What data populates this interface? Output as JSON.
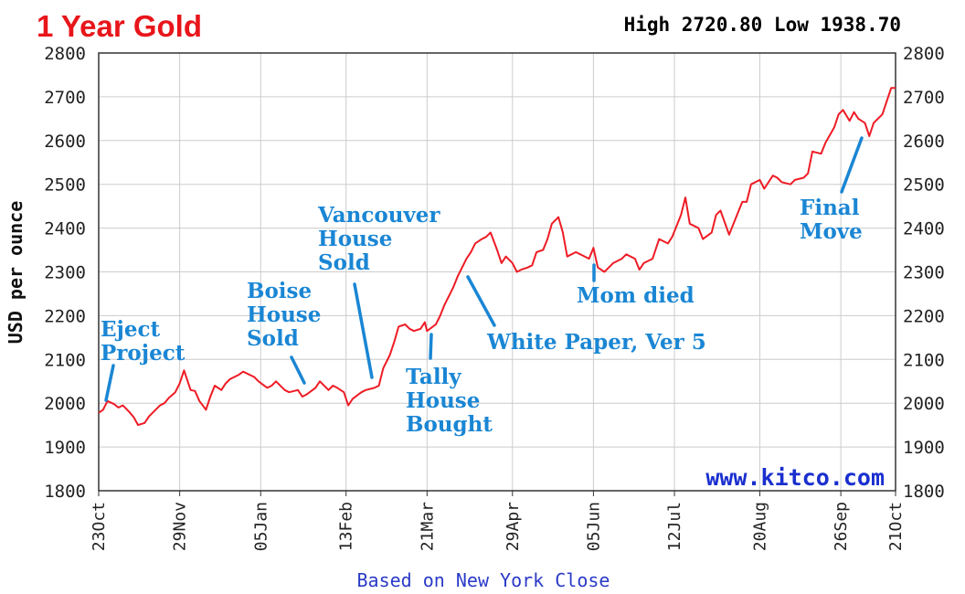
{
  "colors": {
    "title": "#e8151b",
    "line": "#ee1c25",
    "annotation": "#1a86d4",
    "watermark": "#1a2fcf",
    "footer": "#2a3ac8",
    "grid": "#cccccc",
    "frame": "#333333"
  },
  "header": {
    "title": "1 Year Gold",
    "high_low": "High 2720.80 Low 1938.70"
  },
  "watermark": "www.kitco.com",
  "footer": "Based on New York Close",
  "chart_data": {
    "type": "line",
    "title": "1 Year Gold",
    "subtitle": "High 2720.80 Low 1938.70",
    "ylabel": "USD per ounce",
    "xlabel": "Based on New York Close",
    "ylim": [
      1800,
      2800
    ],
    "yticks": [
      1800,
      1900,
      2000,
      2100,
      2200,
      2300,
      2400,
      2500,
      2600,
      2700,
      2800
    ],
    "ytick_labels": [
      "1800",
      "1900",
      "2000",
      "2100",
      "2200",
      "2300",
      "2400",
      "2500",
      "2600",
      "2700",
      "2800"
    ],
    "xlim": [
      "2023-10-23",
      "2024-10-21"
    ],
    "xtick_labels": [
      "23Oct",
      "29Nov",
      "05Jan",
      "13Feb",
      "21Mar",
      "29Apr",
      "05Jun",
      "12Jul",
      "20Aug",
      "26Sep",
      "21Oct"
    ],
    "xtick_dates": [
      "2023-10-23",
      "2023-11-29",
      "2024-01-05",
      "2024-02-13",
      "2024-03-21",
      "2024-04-29",
      "2024-06-05",
      "2024-07-12",
      "2024-08-20",
      "2024-09-26",
      "2024-10-21"
    ],
    "grid": true,
    "series": [
      {
        "values": [
          [
            "2023-10-23",
            1978
          ],
          [
            "2023-10-25",
            1985
          ],
          [
            "2023-10-27",
            2005
          ],
          [
            "2023-10-30",
            1998
          ],
          [
            "2023-11-01",
            1990
          ],
          [
            "2023-11-03",
            1995
          ],
          [
            "2023-11-06",
            1980
          ],
          [
            "2023-11-08",
            1968
          ],
          [
            "2023-11-10",
            1950
          ],
          [
            "2023-11-13",
            1955
          ],
          [
            "2023-11-15",
            1970
          ],
          [
            "2023-11-17",
            1980
          ],
          [
            "2023-11-20",
            1995
          ],
          [
            "2023-11-22",
            2000
          ],
          [
            "2023-11-24",
            2012
          ],
          [
            "2023-11-27",
            2025
          ],
          [
            "2023-11-29",
            2045
          ],
          [
            "2023-12-01",
            2075
          ],
          [
            "2023-12-04",
            2030
          ],
          [
            "2023-12-06",
            2028
          ],
          [
            "2023-12-08",
            2005
          ],
          [
            "2023-12-11",
            1985
          ],
          [
            "2023-12-13",
            2015
          ],
          [
            "2023-12-15",
            2040
          ],
          [
            "2023-12-18",
            2030
          ],
          [
            "2023-12-20",
            2045
          ],
          [
            "2023-12-22",
            2055
          ],
          [
            "2023-12-26",
            2065
          ],
          [
            "2023-12-28",
            2072
          ],
          [
            "2024-01-02",
            2060
          ],
          [
            "2024-01-04",
            2050
          ],
          [
            "2024-01-08",
            2035
          ],
          [
            "2024-01-10",
            2040
          ],
          [
            "2024-01-12",
            2050
          ],
          [
            "2024-01-16",
            2030
          ],
          [
            "2024-01-18",
            2025
          ],
          [
            "2024-01-22",
            2030
          ],
          [
            "2024-01-24",
            2015
          ],
          [
            "2024-01-26",
            2020
          ],
          [
            "2024-01-30",
            2035
          ],
          [
            "2024-02-01",
            2050
          ],
          [
            "2024-02-05",
            2030
          ],
          [
            "2024-02-07",
            2040
          ],
          [
            "2024-02-09",
            2035
          ],
          [
            "2024-02-12",
            2025
          ],
          [
            "2024-02-14",
            1995
          ],
          [
            "2024-02-16",
            2010
          ],
          [
            "2024-02-20",
            2025
          ],
          [
            "2024-02-22",
            2030
          ],
          [
            "2024-02-26",
            2035
          ],
          [
            "2024-02-28",
            2040
          ],
          [
            "2024-03-01",
            2080
          ],
          [
            "2024-03-04",
            2110
          ],
          [
            "2024-03-06",
            2140
          ],
          [
            "2024-03-08",
            2175
          ],
          [
            "2024-03-11",
            2180
          ],
          [
            "2024-03-13",
            2170
          ],
          [
            "2024-03-15",
            2165
          ],
          [
            "2024-03-18",
            2170
          ],
          [
            "2024-03-20",
            2185
          ],
          [
            "2024-03-21",
            2165
          ],
          [
            "2024-03-25",
            2180
          ],
          [
            "2024-03-27",
            2200
          ],
          [
            "2024-03-29",
            2225
          ],
          [
            "2024-04-02",
            2265
          ],
          [
            "2024-04-04",
            2290
          ],
          [
            "2024-04-08",
            2330
          ],
          [
            "2024-04-10",
            2345
          ],
          [
            "2024-04-12",
            2365
          ],
          [
            "2024-04-15",
            2375
          ],
          [
            "2024-04-17",
            2380
          ],
          [
            "2024-04-19",
            2390
          ],
          [
            "2024-04-22",
            2350
          ],
          [
            "2024-04-24",
            2320
          ],
          [
            "2024-04-26",
            2335
          ],
          [
            "2024-04-29",
            2320
          ],
          [
            "2024-05-01",
            2300
          ],
          [
            "2024-05-03",
            2305
          ],
          [
            "2024-05-06",
            2310
          ],
          [
            "2024-05-08",
            2315
          ],
          [
            "2024-05-10",
            2345
          ],
          [
            "2024-05-13",
            2350
          ],
          [
            "2024-05-15",
            2375
          ],
          [
            "2024-05-17",
            2410
          ],
          [
            "2024-05-20",
            2425
          ],
          [
            "2024-05-22",
            2390
          ],
          [
            "2024-05-24",
            2335
          ],
          [
            "2024-05-28",
            2345
          ],
          [
            "2024-05-30",
            2340
          ],
          [
            "2024-06-03",
            2330
          ],
          [
            "2024-06-05",
            2355
          ],
          [
            "2024-06-07",
            2310
          ],
          [
            "2024-06-10",
            2300
          ],
          [
            "2024-06-12",
            2310
          ],
          [
            "2024-06-14",
            2320
          ],
          [
            "2024-06-18",
            2330
          ],
          [
            "2024-06-20",
            2340
          ],
          [
            "2024-06-24",
            2330
          ],
          [
            "2024-06-26",
            2305
          ],
          [
            "2024-06-28",
            2320
          ],
          [
            "2024-07-02",
            2330
          ],
          [
            "2024-07-05",
            2375
          ],
          [
            "2024-07-09",
            2365
          ],
          [
            "2024-07-11",
            2380
          ],
          [
            "2024-07-15",
            2430
          ],
          [
            "2024-07-17",
            2470
          ],
          [
            "2024-07-19",
            2410
          ],
          [
            "2024-07-23",
            2400
          ],
          [
            "2024-07-25",
            2375
          ],
          [
            "2024-07-29",
            2390
          ],
          [
            "2024-07-31",
            2430
          ],
          [
            "2024-08-02",
            2440
          ],
          [
            "2024-08-06",
            2385
          ],
          [
            "2024-08-08",
            2410
          ],
          [
            "2024-08-12",
            2460
          ],
          [
            "2024-08-14",
            2460
          ],
          [
            "2024-08-16",
            2500
          ],
          [
            "2024-08-20",
            2510
          ],
          [
            "2024-08-22",
            2490
          ],
          [
            "2024-08-26",
            2520
          ],
          [
            "2024-08-28",
            2515
          ],
          [
            "2024-08-30",
            2505
          ],
          [
            "2024-09-03",
            2500
          ],
          [
            "2024-09-05",
            2510
          ],
          [
            "2024-09-09",
            2515
          ],
          [
            "2024-09-11",
            2525
          ],
          [
            "2024-09-13",
            2575
          ],
          [
            "2024-09-17",
            2570
          ],
          [
            "2024-09-19",
            2595
          ],
          [
            "2024-09-23",
            2630
          ],
          [
            "2024-09-25",
            2660
          ],
          [
            "2024-09-27",
            2670
          ],
          [
            "2024-09-30",
            2645
          ],
          [
            "2024-10-02",
            2665
          ],
          [
            "2024-10-04",
            2650
          ],
          [
            "2024-10-07",
            2640
          ],
          [
            "2024-10-09",
            2610
          ],
          [
            "2024-10-11",
            2640
          ],
          [
            "2024-10-15",
            2660
          ],
          [
            "2024-10-17",
            2690
          ],
          [
            "2024-10-19",
            2720
          ],
          [
            "2024-10-21",
            2720
          ]
        ]
      }
    ],
    "annotations": [
      {
        "lines": [
          "Eject",
          "Project"
        ],
        "date": "2023-10-27",
        "value": 2005
      },
      {
        "lines": [
          "Boise",
          "House",
          "Sold"
        ],
        "date": "2024-01-29",
        "value": 2035
      },
      {
        "lines": [
          "Vancouver",
          "House",
          "Sold"
        ],
        "date": "2024-02-25",
        "value": 2045
      },
      {
        "lines": [
          "Tally",
          "House",
          "Bought"
        ],
        "date": "2024-03-21",
        "value": 2165
      },
      {
        "lines": [
          "White Paper, Ver 5"
        ],
        "date": "2024-04-12",
        "value": 2290
      },
      {
        "lines": [
          "Mom died"
        ],
        "date": "2024-06-05",
        "value": 2310
      },
      {
        "lines": [
          "Final",
          "Move"
        ],
        "date": "2024-10-07",
        "value": 2610
      }
    ]
  }
}
